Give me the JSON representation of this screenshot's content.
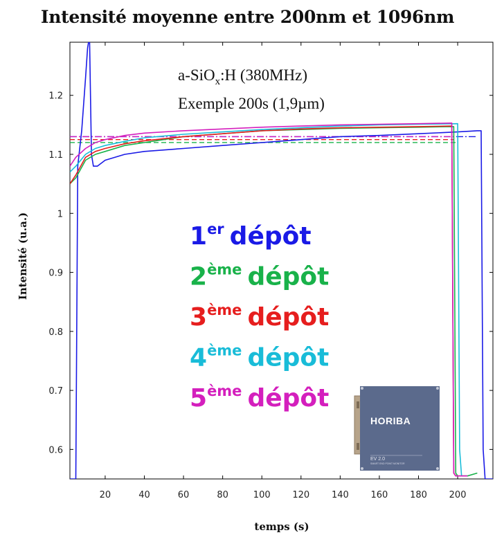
{
  "chart_data": {
    "type": "line",
    "title": "Intensité moyenne entre 200nm et 1096nm",
    "xlabel": "temps (s)",
    "ylabel": "Intensité (u.a.)",
    "xlim": [
      2,
      218
    ],
    "ylim": [
      0.55,
      1.29
    ],
    "xticks": [
      20,
      40,
      60,
      80,
      100,
      120,
      140,
      160,
      180,
      200
    ],
    "yticks": [
      0.6,
      0.7,
      0.8,
      0.9,
      1,
      1.1,
      1.2
    ],
    "xtick_labels": [
      "20",
      "40",
      "60",
      "80",
      "100",
      "120",
      "140",
      "160",
      "180",
      "200"
    ],
    "ytick_labels": [
      "0.6",
      "0.7",
      "0.8",
      "0.9",
      "1",
      "1.1",
      "1.2"
    ],
    "annotation": {
      "line1_prefix": "a-SiO",
      "line1_sub": "x",
      "line1_suffix": ":H  (380MHz)",
      "line2": "Exemple 200s (1,9µm)"
    },
    "series": [
      {
        "name": "1er dépôt",
        "label_main": "1",
        "label_sup": "er",
        "label_word": "dépôt",
        "color": "#1a1ae6",
        "x": [
          2,
          5,
          6,
          8,
          10,
          11,
          12,
          13,
          14,
          16,
          20,
          30,
          40,
          60,
          80,
          100,
          120,
          140,
          160,
          180,
          200,
          210,
          212,
          213,
          214,
          218
        ],
        "y": [
          0.55,
          0.55,
          1.08,
          1.14,
          1.23,
          1.28,
          1.3,
          1.1,
          1.08,
          1.08,
          1.09,
          1.1,
          1.105,
          1.11,
          1.115,
          1.12,
          1.125,
          1.13,
          1.132,
          1.135,
          1.138,
          1.14,
          1.14,
          0.6,
          0.55,
          0.55
        ]
      },
      {
        "name": "2ème dépôt",
        "label_main": "2",
        "label_sup": "ème",
        "label_word": "dépôt",
        "color": "#19b24a",
        "x": [
          2,
          5,
          10,
          15,
          20,
          30,
          40,
          60,
          80,
          100,
          120,
          140,
          160,
          180,
          198,
          199,
          200,
          205,
          210
        ],
        "y": [
          1.05,
          1.06,
          1.09,
          1.1,
          1.105,
          1.115,
          1.12,
          1.13,
          1.135,
          1.14,
          1.142,
          1.144,
          1.145,
          1.146,
          1.147,
          0.56,
          0.555,
          0.555,
          0.56
        ]
      },
      {
        "name": "3ème dépôt",
        "label_main": "3",
        "label_sup": "ème",
        "label_word": "dépôt",
        "color": "#e61e1e",
        "x": [
          2,
          5,
          10,
          15,
          20,
          30,
          40,
          60,
          80,
          100,
          120,
          140,
          160,
          180,
          197,
          198,
          199,
          205
        ],
        "y": [
          1.05,
          1.065,
          1.095,
          1.105,
          1.11,
          1.118,
          1.123,
          1.13,
          1.135,
          1.14,
          1.143,
          1.145,
          1.146,
          1.147,
          1.148,
          0.56,
          0.555,
          0.555
        ]
      },
      {
        "name": "4ème dépôt",
        "label_main": "4",
        "label_sup": "ème",
        "label_word": "dépôt",
        "color": "#19bcd8",
        "x": [
          2,
          5,
          10,
          15,
          20,
          30,
          40,
          60,
          80,
          100,
          120,
          140,
          160,
          180,
          200,
          201,
          202,
          205
        ],
        "y": [
          1.07,
          1.08,
          1.1,
          1.11,
          1.115,
          1.122,
          1.128,
          1.134,
          1.138,
          1.142,
          1.145,
          1.148,
          1.15,
          1.151,
          1.152,
          0.6,
          0.555,
          0.555
        ]
      },
      {
        "name": "5ème dépôt",
        "label_main": "5",
        "label_sup": "ème",
        "label_word": "dépôt",
        "color": "#d41fbd",
        "x": [
          2,
          5,
          10,
          15,
          20,
          30,
          40,
          60,
          80,
          100,
          120,
          140,
          160,
          180,
          197,
          198,
          199,
          205
        ],
        "y": [
          1.08,
          1.095,
          1.11,
          1.12,
          1.125,
          1.132,
          1.136,
          1.14,
          1.143,
          1.146,
          1.148,
          1.15,
          1.151,
          1.152,
          1.153,
          0.56,
          0.555,
          0.555
        ]
      }
    ],
    "reference_lines": [
      {
        "color": "#1a1ae6",
        "y": 1.13,
        "x_end": 210,
        "style": "dashdot"
      },
      {
        "color": "#19b24a",
        "y": 1.12,
        "x_end": 199,
        "style": "dashed"
      },
      {
        "color": "#e61e1e",
        "y": 1.125,
        "x_end": 198,
        "style": "dashed"
      },
      {
        "color": "#d41fbd",
        "y": 1.13,
        "x_end": 198,
        "style": "dashdot"
      }
    ]
  },
  "device_image": {
    "brand": "HORIBA",
    "model": "EV 2.0",
    "subtitle": "SMART END POINT MONITOR"
  }
}
